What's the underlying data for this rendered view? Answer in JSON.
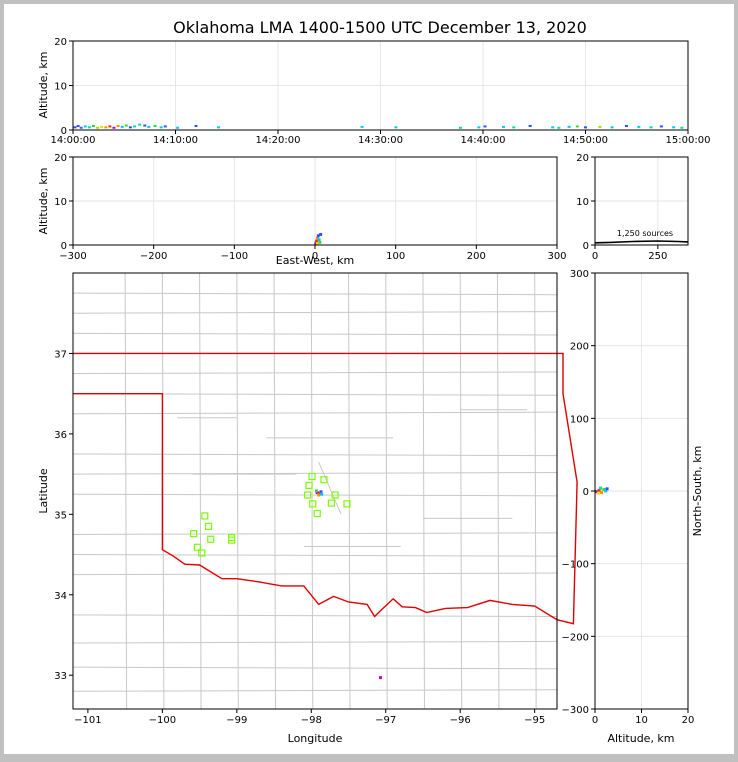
{
  "figure": {
    "title": "Oklahoma LMA 1400-1500 UTC December 13, 2020",
    "source_count_label": "1,250 sources"
  },
  "colors": {
    "background": "#ffffff",
    "border": "#c0c0c0",
    "state_boundary": "#e00000",
    "county_lines": "#c8c8c8",
    "stations": "#7cfc00",
    "grid": "#e6e6e6"
  },
  "chart_data": [
    {
      "name": "time-height",
      "type": "scatter",
      "xlabel": "",
      "ylabel": "Altitude, km",
      "xticks": [
        "14:00:00",
        "14:10:00",
        "14:20:00",
        "14:30:00",
        "14:40:00",
        "14:50:00",
        "15:00:00"
      ],
      "xlim_minutes": [
        0,
        60
      ],
      "ylim": [
        0,
        20
      ],
      "yticks": [
        0,
        10,
        20
      ],
      "points": [
        {
          "x": 0.2,
          "y": 0.6,
          "c": "#3050ff"
        },
        {
          "x": 0.5,
          "y": 0.9,
          "c": "#3050ff"
        },
        {
          "x": 0.8,
          "y": 0.5,
          "c": "#4060ff"
        },
        {
          "x": 1.2,
          "y": 0.8,
          "c": "#00c8ff"
        },
        {
          "x": 1.6,
          "y": 0.6,
          "c": "#00e0a0"
        },
        {
          "x": 2.0,
          "y": 0.9,
          "c": "#40d040"
        },
        {
          "x": 2.4,
          "y": 0.5,
          "c": "#a0e000"
        },
        {
          "x": 2.8,
          "y": 0.7,
          "c": "#e0e000"
        },
        {
          "x": 3.2,
          "y": 0.6,
          "c": "#ff9000"
        },
        {
          "x": 3.6,
          "y": 0.8,
          "c": "#ff3000"
        },
        {
          "x": 4.0,
          "y": 0.5,
          "c": "#c000c0"
        },
        {
          "x": 4.4,
          "y": 0.9,
          "c": "#ff9000"
        },
        {
          "x": 4.8,
          "y": 0.7,
          "c": "#00c8ff"
        },
        {
          "x": 5.2,
          "y": 1.0,
          "c": "#40d040"
        },
        {
          "x": 5.6,
          "y": 0.6,
          "c": "#3050ff"
        },
        {
          "x": 6.0,
          "y": 0.8,
          "c": "#00e0a0"
        },
        {
          "x": 6.5,
          "y": 1.2,
          "c": "#00e0a0"
        },
        {
          "x": 7.0,
          "y": 1.0,
          "c": "#3050ff"
        },
        {
          "x": 7.4,
          "y": 0.7,
          "c": "#00c8ff"
        },
        {
          "x": 8.0,
          "y": 0.9,
          "c": "#40d040"
        },
        {
          "x": 8.6,
          "y": 0.6,
          "c": "#00c8ff"
        },
        {
          "x": 9.0,
          "y": 0.8,
          "c": "#3050ff"
        },
        {
          "x": 10.2,
          "y": 0.5,
          "c": "#00c8ff"
        },
        {
          "x": 12.0,
          "y": 0.9,
          "c": "#3050ff"
        },
        {
          "x": 14.2,
          "y": 0.6,
          "c": "#00c8ff"
        },
        {
          "x": 28.2,
          "y": 0.7,
          "c": "#00c8ff"
        },
        {
          "x": 31.5,
          "y": 0.6,
          "c": "#00c8ff"
        },
        {
          "x": 37.8,
          "y": 0.5,
          "c": "#00e0a0"
        },
        {
          "x": 39.6,
          "y": 0.6,
          "c": "#00c8ff"
        },
        {
          "x": 40.2,
          "y": 0.8,
          "c": "#3050ff"
        },
        {
          "x": 42.0,
          "y": 0.7,
          "c": "#00c8ff"
        },
        {
          "x": 43.0,
          "y": 0.6,
          "c": "#00e0a0"
        },
        {
          "x": 44.6,
          "y": 0.9,
          "c": "#3050ff"
        },
        {
          "x": 46.8,
          "y": 0.6,
          "c": "#00c8ff"
        },
        {
          "x": 47.4,
          "y": 0.5,
          "c": "#00e0a0"
        },
        {
          "x": 48.4,
          "y": 0.7,
          "c": "#00c8ff"
        },
        {
          "x": 49.2,
          "y": 0.8,
          "c": "#40d040"
        },
        {
          "x": 50.0,
          "y": 0.6,
          "c": "#3050ff"
        },
        {
          "x": 51.4,
          "y": 0.7,
          "c": "#a0e000"
        },
        {
          "x": 52.6,
          "y": 0.6,
          "c": "#00c8ff"
        },
        {
          "x": 54.0,
          "y": 0.9,
          "c": "#3050ff"
        },
        {
          "x": 55.2,
          "y": 0.7,
          "c": "#00c8ff"
        },
        {
          "x": 56.4,
          "y": 0.6,
          "c": "#00e0a0"
        },
        {
          "x": 57.4,
          "y": 0.8,
          "c": "#3050ff"
        },
        {
          "x": 58.6,
          "y": 0.6,
          "c": "#00c8ff"
        },
        {
          "x": 59.4,
          "y": 0.5,
          "c": "#00e0a0"
        }
      ]
    },
    {
      "name": "east-west-altitude",
      "type": "scatter",
      "xlabel": "East-West, km",
      "ylabel": "Altitude, km",
      "xlim": [
        -300,
        300
      ],
      "xticks": [
        -300,
        -200,
        -100,
        0,
        100,
        200,
        300
      ],
      "ylim": [
        0,
        20
      ],
      "yticks": [
        0,
        10,
        20
      ],
      "points": [
        {
          "x": 1,
          "y": 0.4,
          "c": "#c000c0"
        },
        {
          "x": 2,
          "y": 0.9,
          "c": "#ff3000"
        },
        {
          "x": 3,
          "y": 1.5,
          "c": "#ff9000"
        },
        {
          "x": 4,
          "y": 2.1,
          "c": "#3050ff"
        },
        {
          "x": 5,
          "y": 1.2,
          "c": "#00c8ff"
        },
        {
          "x": 6,
          "y": 0.6,
          "c": "#40d040"
        },
        {
          "x": 7,
          "y": 2.4,
          "c": "#3050ff"
        },
        {
          "x": 3,
          "y": 0.3,
          "c": "#e0e000"
        }
      ]
    },
    {
      "name": "altitude-histogram",
      "type": "line",
      "xlabel": "",
      "ylabel": "",
      "xlim": [
        0,
        370
      ],
      "xticks": [
        0,
        250
      ],
      "ylim": [
        0,
        20
      ],
      "yticks": [
        0,
        10,
        20
      ],
      "points": [
        [
          0,
          0.5
        ],
        [
          60,
          0.6
        ],
        [
          150,
          0.8
        ],
        [
          250,
          0.9
        ],
        [
          330,
          0.8
        ],
        [
          370,
          0.7
        ]
      ]
    },
    {
      "name": "plan-view",
      "type": "scatter",
      "xlabel": "Longitude",
      "ylabel": "Latitude",
      "xlim": [
        -101.2,
        -94.7
      ],
      "xticks": [
        -101,
        -100,
        -99,
        -98,
        -97,
        -96,
        -95
      ],
      "ylim": [
        32.58,
        38.0
      ],
      "yticks": [
        33,
        34,
        35,
        36,
        37
      ],
      "stations": [
        [
          -97.99,
          35.47
        ],
        [
          -97.83,
          35.43
        ],
        [
          -98.03,
          35.36
        ],
        [
          -97.68,
          35.24
        ],
        [
          -98.05,
          35.24
        ],
        [
          -97.73,
          35.14
        ],
        [
          -97.98,
          35.13
        ],
        [
          -97.52,
          35.13
        ],
        [
          -97.92,
          35.01
        ],
        [
          -99.43,
          34.98
        ],
        [
          -99.38,
          34.85
        ],
        [
          -99.58,
          34.76
        ],
        [
          -99.35,
          34.69
        ],
        [
          -99.07,
          34.71
        ],
        [
          -99.07,
          34.68
        ],
        [
          -99.53,
          34.59
        ],
        [
          -99.47,
          34.52
        ]
      ],
      "lightning": [
        {
          "x": -97.92,
          "y": 35.27,
          "c": "#c000c0"
        },
        {
          "x": -97.89,
          "y": 35.26,
          "c": "#ff3000"
        },
        {
          "x": -97.87,
          "y": 35.28,
          "c": "#3050ff"
        },
        {
          "x": -97.9,
          "y": 35.24,
          "c": "#ff9000"
        },
        {
          "x": -97.86,
          "y": 35.25,
          "c": "#00c8ff"
        },
        {
          "x": -97.93,
          "y": 35.29,
          "c": "#40d040"
        },
        {
          "x": -97.07,
          "y": 32.97,
          "c": "#c000c0"
        }
      ]
    },
    {
      "name": "altitude-north-south",
      "type": "scatter",
      "xlabel": "Altitude, km",
      "ylabel": "North-South, km",
      "xlim": [
        0,
        20
      ],
      "xticks": [
        0,
        10,
        20
      ],
      "ylim": [
        -300,
        300
      ],
      "yticks": [
        -300,
        -200,
        -100,
        0,
        100,
        200,
        300
      ],
      "points": [
        {
          "x": 0.4,
          "y": -1,
          "c": "#c000c0"
        },
        {
          "x": 0.9,
          "y": 1,
          "c": "#ff3000"
        },
        {
          "x": 1.4,
          "y": -2,
          "c": "#ff9000"
        },
        {
          "x": 1.9,
          "y": 2,
          "c": "#40d040"
        },
        {
          "x": 2.3,
          "y": 0,
          "c": "#00c8ff"
        },
        {
          "x": 2.6,
          "y": 3,
          "c": "#3050ff"
        },
        {
          "x": 0.7,
          "y": -3,
          "c": "#e0e000"
        },
        {
          "x": 1.2,
          "y": 4,
          "c": "#00e0a0"
        }
      ]
    }
  ]
}
